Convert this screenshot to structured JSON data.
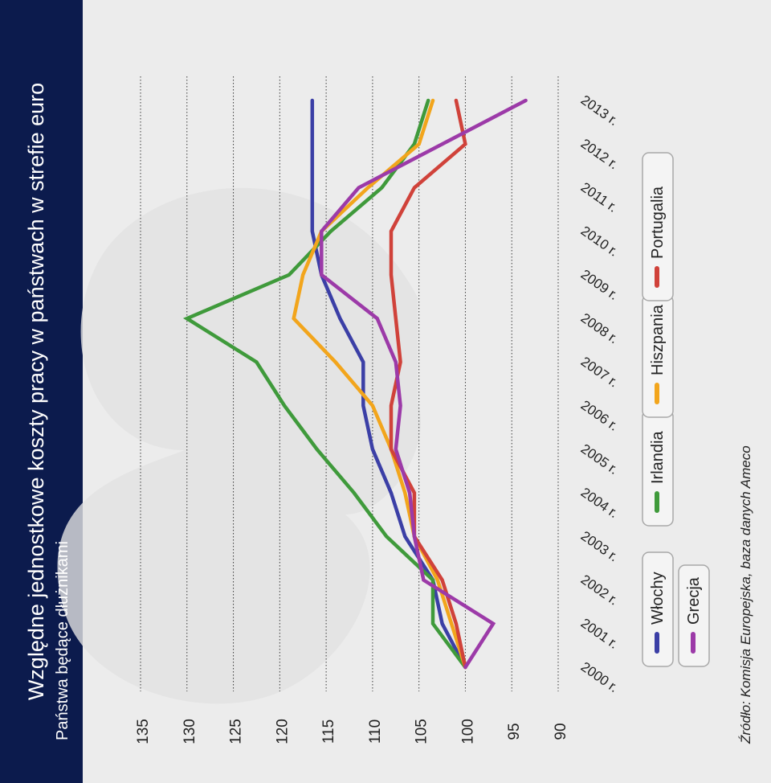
{
  "chart_data": {
    "type": "line",
    "title": "Względne jednostkowe koszty pracy w państwach w strefie euro",
    "subtitle": "Państwa będące dłużnikami",
    "source": "Źródło: Komisja Europejska, baza danych Ameco",
    "categories": [
      "2000 r.",
      "2001 r.",
      "2002 r.",
      "2003 r.",
      "2004 r.",
      "2005 r.",
      "2006 r.",
      "2007 r.",
      "2008 r.",
      "2009 r.",
      "2010 r.",
      "2011 r.",
      "2012 r.",
      "2013 r."
    ],
    "ylim": [
      90,
      135
    ],
    "yticks": [
      135,
      130,
      125,
      120,
      115,
      110,
      105,
      100,
      95,
      90
    ],
    "grid": true,
    "legend_position": "bottom",
    "series": [
      {
        "name": "Włochy",
        "color": "#3b3fa6",
        "values": [
          100,
          102.5,
          103.5,
          106.5,
          108,
          110,
          111,
          111,
          113.5,
          115.5,
          116.5,
          116.5,
          116.5,
          116.5
        ]
      },
      {
        "name": "Irlandia",
        "color": "#3f9a3b",
        "values": [
          100,
          103.5,
          103.5,
          108.5,
          112,
          116,
          119.5,
          122.5,
          130,
          119,
          114.5,
          109,
          105.5,
          104
        ]
      },
      {
        "name": "Hiszpania",
        "color": "#f2a51c",
        "values": [
          100,
          101.5,
          103,
          105.5,
          106.5,
          108,
          110,
          114,
          118.5,
          117.5,
          115.5,
          110.5,
          105,
          103.5
        ]
      },
      {
        "name": "Portugalia",
        "color": "#d0423a",
        "values": [
          100,
          101,
          102.5,
          105.5,
          105.5,
          108,
          108,
          107,
          107.5,
          108,
          108,
          105.5,
          100,
          101
        ]
      },
      {
        "name": "Grecja",
        "color": "#9c3aa8",
        "values": [
          100,
          97,
          104.5,
          105.5,
          106,
          107.5,
          107,
          107.5,
          109.5,
          115.5,
          115.5,
          111.5,
          102.5,
          93.5
        ]
      }
    ]
  }
}
